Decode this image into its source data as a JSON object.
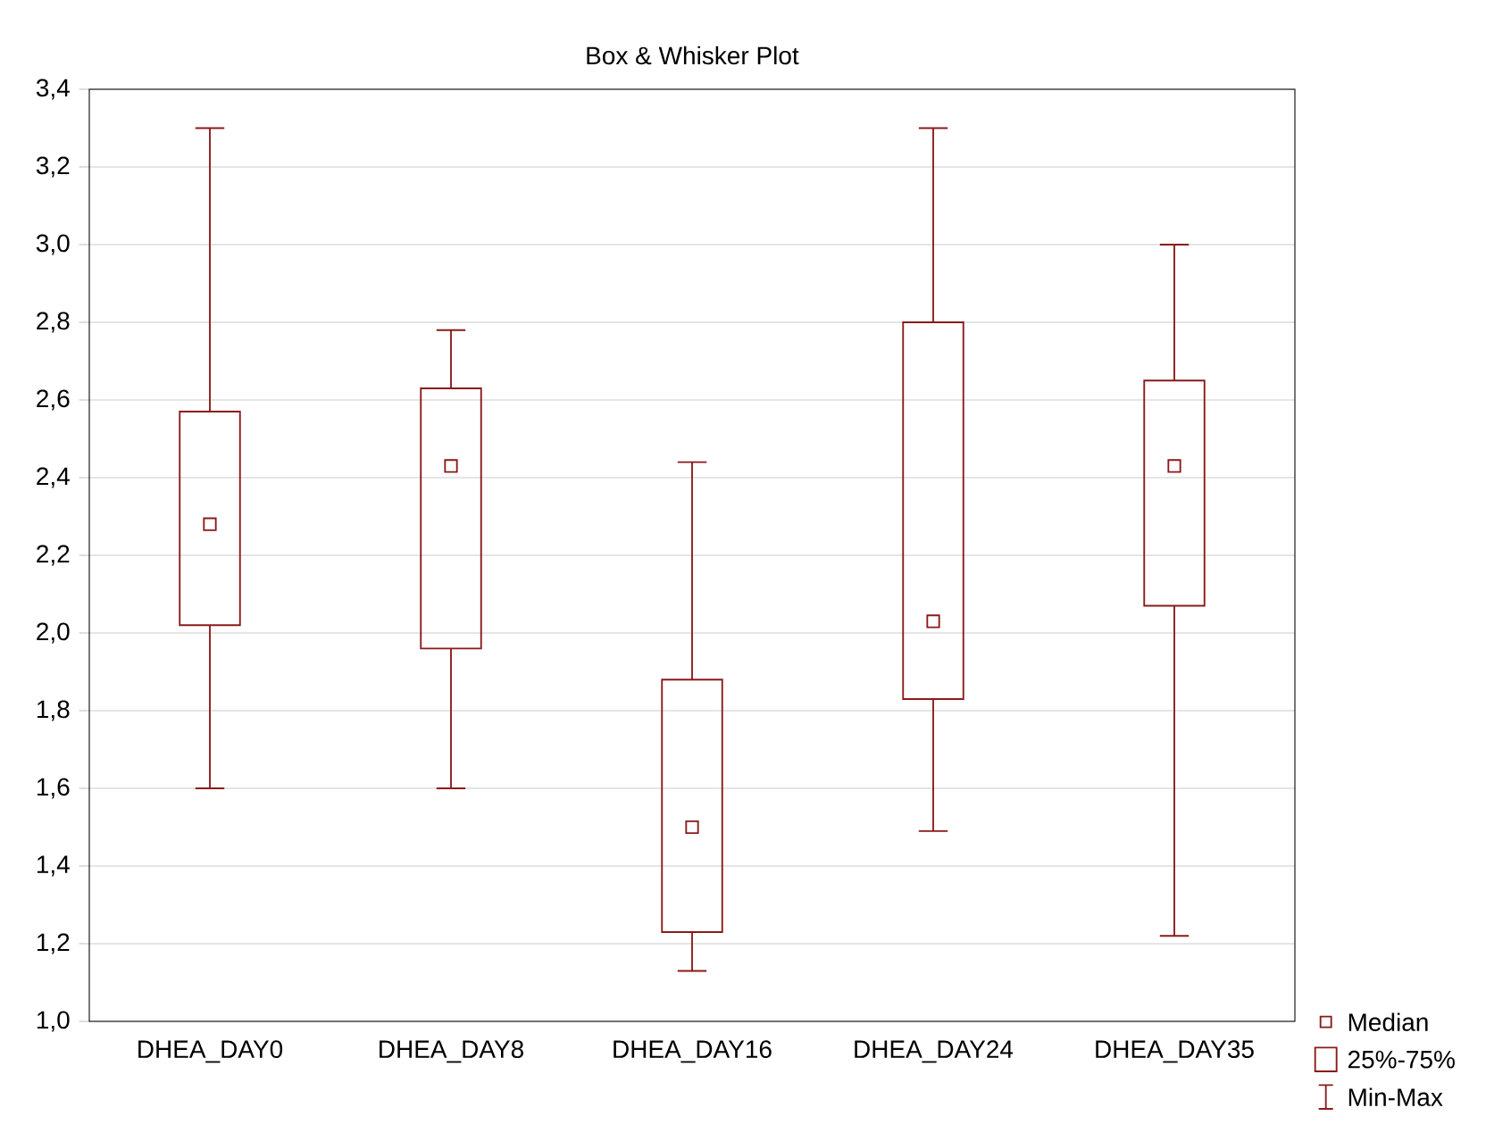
{
  "chart_data": {
    "type": "box",
    "title": "Box & Whisker Plot",
    "categories": [
      "DHEA_DAY0",
      "DHEA_DAY8",
      "DHEA_DAY16",
      "DHEA_DAY24",
      "DHEA_DAY35"
    ],
    "boxes": [
      {
        "low": 1.6,
        "q1": 2.02,
        "median": 2.28,
        "q3": 2.57,
        "high": 3.3
      },
      {
        "low": 1.6,
        "q1": 1.96,
        "median": 2.43,
        "q3": 2.63,
        "high": 2.78
      },
      {
        "low": 1.13,
        "q1": 1.23,
        "median": 1.5,
        "q3": 1.88,
        "high": 2.44
      },
      {
        "low": 1.49,
        "q1": 1.83,
        "median": 2.03,
        "q3": 2.8,
        "high": 3.3
      },
      {
        "low": 1.22,
        "q1": 2.07,
        "median": 2.43,
        "q3": 2.65,
        "high": 3.0
      }
    ],
    "color": "#8b1a1a",
    "ylim": [
      1.0,
      3.4
    ],
    "yticks": [
      {
        "value": 1.0,
        "label": "1,0"
      },
      {
        "value": 1.2,
        "label": "1,2"
      },
      {
        "value": 1.4,
        "label": "1,4"
      },
      {
        "value": 1.6,
        "label": "1,6"
      },
      {
        "value": 1.8,
        "label": "1,8"
      },
      {
        "value": 2.0,
        "label": "2,0"
      },
      {
        "value": 2.2,
        "label": "2,2"
      },
      {
        "value": 2.4,
        "label": "2,4"
      },
      {
        "value": 2.6,
        "label": "2,6"
      },
      {
        "value": 2.8,
        "label": "2,8"
      },
      {
        "value": 3.0,
        "label": "3,0"
      },
      {
        "value": 3.2,
        "label": "3,2"
      },
      {
        "value": 3.4,
        "label": "3,4"
      }
    ],
    "grid": "y",
    "annotations": [
      "Median",
      "25%-75%",
      "Min-Max"
    ]
  }
}
